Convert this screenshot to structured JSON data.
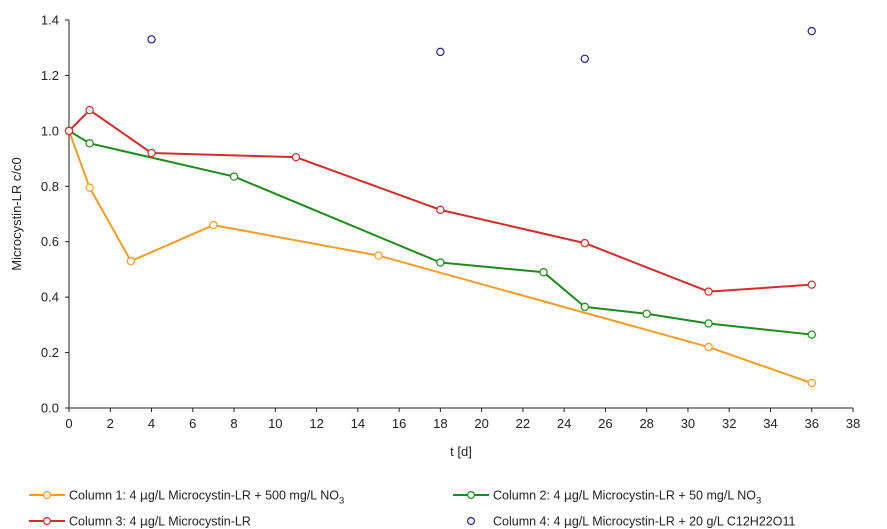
{
  "chart_data": {
    "type": "line",
    "xlabel": "t [d]",
    "ylabel": "Microcystin-LR c/c0",
    "xlim": [
      0,
      38
    ],
    "ylim": [
      0,
      1.4
    ],
    "xticks": [
      "0",
      "2",
      "4",
      "6",
      "8",
      "10",
      "12",
      "14",
      "16",
      "18",
      "20",
      "22",
      "24",
      "26",
      "28",
      "30",
      "32",
      "34",
      "36",
      "38"
    ],
    "yticks": [
      "0.0",
      "0.2",
      "0.4",
      "0.6",
      "0.8",
      "1.0",
      "1.2",
      "1.4"
    ],
    "grid": false,
    "legend_position": "bottom",
    "series": [
      {
        "name": "Column 1: 4 µg/L Microcystin-LR + 500 mg/L NO3",
        "color": "#f39c26",
        "style": "line-marker",
        "x": [
          0,
          1,
          3,
          7,
          15,
          31,
          36
        ],
        "y": [
          1.0,
          0.795,
          0.53,
          0.66,
          0.55,
          0.22,
          0.09
        ]
      },
      {
        "name": "Column 2: 4 µg/L Microcystin-LR + 50 mg/L NO3",
        "color": "#1e8a1e",
        "style": "line-marker",
        "x": [
          0,
          1,
          8,
          18,
          23,
          25,
          28,
          31,
          36
        ],
        "y": [
          1.0,
          0.955,
          0.835,
          0.525,
          0.49,
          0.365,
          0.34,
          0.305,
          0.265
        ]
      },
      {
        "name": "Column 3: 4 µg/L Microcystin-LR",
        "color": "#d42b2b",
        "style": "line-marker",
        "x": [
          0,
          1,
          4,
          11,
          18,
          25,
          31,
          36
        ],
        "y": [
          1.0,
          1.075,
          0.92,
          0.905,
          0.715,
          0.595,
          0.42,
          0.445
        ]
      },
      {
        "name": "Column 4: 4 µg/L Microcystin-LR + 20 g/L C12H22O11",
        "color": "#1f1f8f",
        "style": "marker-only",
        "x": [
          4,
          18,
          25,
          36
        ],
        "y": [
          1.33,
          1.285,
          1.26,
          1.36
        ]
      }
    ]
  },
  "legend": [
    {
      "prefix": "Column 1: 4 ",
      "mu": "μ",
      "mid": "g/L Microcystin-LR + 500 mg/L NO",
      "sub": "3"
    },
    {
      "prefix": "Column 2: 4 ",
      "mu": "μ",
      "mid": "g/L Microcystin-LR + 50 mg/L NO",
      "sub": "3"
    },
    {
      "prefix": "Column 3: 4 ",
      "mu": "μ",
      "mid": "g/L Microcystin-LR",
      "sub": ""
    },
    {
      "prefix": "Column 4: 4 ",
      "mu": "μ",
      "mid": "g/L Microcystin-LR + 20 g/L C12H22O11",
      "sub": ""
    }
  ]
}
